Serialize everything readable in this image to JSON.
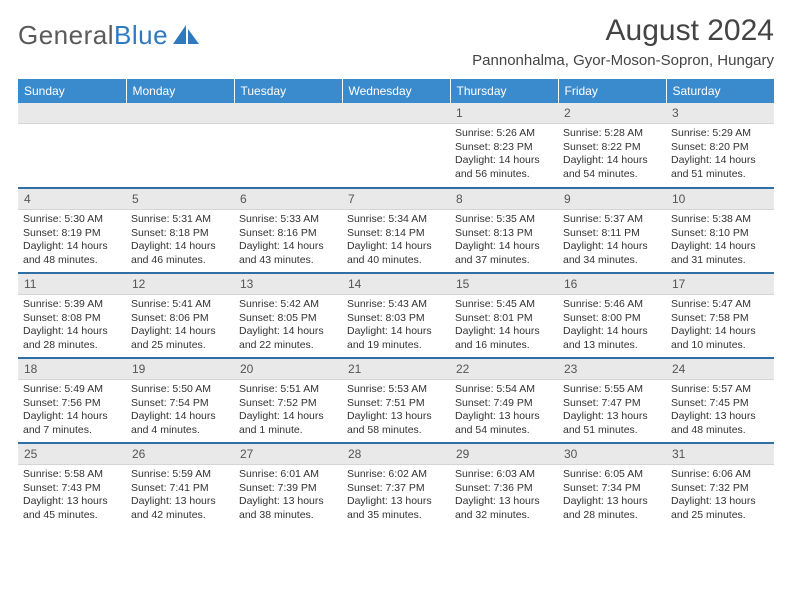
{
  "logo": {
    "text1": "General",
    "text2": "Blue"
  },
  "header": {
    "month_title": "August 2024",
    "location": "Pannonhalma, Gyor-Moson-Sopron, Hungary"
  },
  "colors": {
    "header_bg": "#3a8bce",
    "row_divider": "#2f6fa5",
    "daynum_bg": "#e9e9e9",
    "logo_gray": "#5a5a5a",
    "logo_blue": "#2f7abf",
    "text": "#333333"
  },
  "weekdays": [
    "Sunday",
    "Monday",
    "Tuesday",
    "Wednesday",
    "Thursday",
    "Friday",
    "Saturday"
  ],
  "weeks": [
    [
      null,
      null,
      null,
      null,
      {
        "n": "1",
        "sr": "5:26 AM",
        "ss": "8:23 PM",
        "dl": "14 hours and 56 minutes."
      },
      {
        "n": "2",
        "sr": "5:28 AM",
        "ss": "8:22 PM",
        "dl": "14 hours and 54 minutes."
      },
      {
        "n": "3",
        "sr": "5:29 AM",
        "ss": "8:20 PM",
        "dl": "14 hours and 51 minutes."
      }
    ],
    [
      {
        "n": "4",
        "sr": "5:30 AM",
        "ss": "8:19 PM",
        "dl": "14 hours and 48 minutes."
      },
      {
        "n": "5",
        "sr": "5:31 AM",
        "ss": "8:18 PM",
        "dl": "14 hours and 46 minutes."
      },
      {
        "n": "6",
        "sr": "5:33 AM",
        "ss": "8:16 PM",
        "dl": "14 hours and 43 minutes."
      },
      {
        "n": "7",
        "sr": "5:34 AM",
        "ss": "8:14 PM",
        "dl": "14 hours and 40 minutes."
      },
      {
        "n": "8",
        "sr": "5:35 AM",
        "ss": "8:13 PM",
        "dl": "14 hours and 37 minutes."
      },
      {
        "n": "9",
        "sr": "5:37 AM",
        "ss": "8:11 PM",
        "dl": "14 hours and 34 minutes."
      },
      {
        "n": "10",
        "sr": "5:38 AM",
        "ss": "8:10 PM",
        "dl": "14 hours and 31 minutes."
      }
    ],
    [
      {
        "n": "11",
        "sr": "5:39 AM",
        "ss": "8:08 PM",
        "dl": "14 hours and 28 minutes."
      },
      {
        "n": "12",
        "sr": "5:41 AM",
        "ss": "8:06 PM",
        "dl": "14 hours and 25 minutes."
      },
      {
        "n": "13",
        "sr": "5:42 AM",
        "ss": "8:05 PM",
        "dl": "14 hours and 22 minutes."
      },
      {
        "n": "14",
        "sr": "5:43 AM",
        "ss": "8:03 PM",
        "dl": "14 hours and 19 minutes."
      },
      {
        "n": "15",
        "sr": "5:45 AM",
        "ss": "8:01 PM",
        "dl": "14 hours and 16 minutes."
      },
      {
        "n": "16",
        "sr": "5:46 AM",
        "ss": "8:00 PM",
        "dl": "14 hours and 13 minutes."
      },
      {
        "n": "17",
        "sr": "5:47 AM",
        "ss": "7:58 PM",
        "dl": "14 hours and 10 minutes."
      }
    ],
    [
      {
        "n": "18",
        "sr": "5:49 AM",
        "ss": "7:56 PM",
        "dl": "14 hours and 7 minutes."
      },
      {
        "n": "19",
        "sr": "5:50 AM",
        "ss": "7:54 PM",
        "dl": "14 hours and 4 minutes."
      },
      {
        "n": "20",
        "sr": "5:51 AM",
        "ss": "7:52 PM",
        "dl": "14 hours and 1 minute."
      },
      {
        "n": "21",
        "sr": "5:53 AM",
        "ss": "7:51 PM",
        "dl": "13 hours and 58 minutes."
      },
      {
        "n": "22",
        "sr": "5:54 AM",
        "ss": "7:49 PM",
        "dl": "13 hours and 54 minutes."
      },
      {
        "n": "23",
        "sr": "5:55 AM",
        "ss": "7:47 PM",
        "dl": "13 hours and 51 minutes."
      },
      {
        "n": "24",
        "sr": "5:57 AM",
        "ss": "7:45 PM",
        "dl": "13 hours and 48 minutes."
      }
    ],
    [
      {
        "n": "25",
        "sr": "5:58 AM",
        "ss": "7:43 PM",
        "dl": "13 hours and 45 minutes."
      },
      {
        "n": "26",
        "sr": "5:59 AM",
        "ss": "7:41 PM",
        "dl": "13 hours and 42 minutes."
      },
      {
        "n": "27",
        "sr": "6:01 AM",
        "ss": "7:39 PM",
        "dl": "13 hours and 38 minutes."
      },
      {
        "n": "28",
        "sr": "6:02 AM",
        "ss": "7:37 PM",
        "dl": "13 hours and 35 minutes."
      },
      {
        "n": "29",
        "sr": "6:03 AM",
        "ss": "7:36 PM",
        "dl": "13 hours and 32 minutes."
      },
      {
        "n": "30",
        "sr": "6:05 AM",
        "ss": "7:34 PM",
        "dl": "13 hours and 28 minutes."
      },
      {
        "n": "31",
        "sr": "6:06 AM",
        "ss": "7:32 PM",
        "dl": "13 hours and 25 minutes."
      }
    ]
  ],
  "labels": {
    "sunrise": "Sunrise:",
    "sunset": "Sunset:",
    "daylight": "Daylight:"
  }
}
